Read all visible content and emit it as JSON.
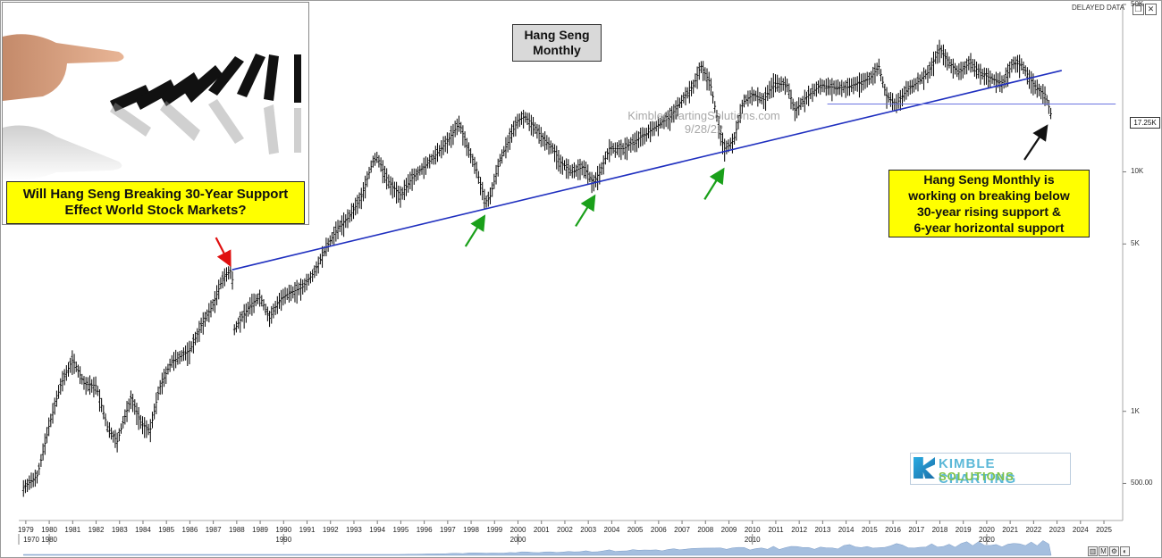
{
  "window": {
    "delayed_label": "DELAYED DATA",
    "controls": [
      "restore-icon",
      "close-icon"
    ]
  },
  "photo_caption": {
    "line1": "Will Hang Seng Breaking 30-Year Support",
    "line2": "Effect World Stock Markets?"
  },
  "title_box": {
    "line1": "Hang Seng",
    "line2": "Monthly"
  },
  "watermark": {
    "line1": "KimbleChartingSolutions.com",
    "line2": "9/28/22"
  },
  "annotation": {
    "line1": "Hang Seng Monthly is",
    "line2": "working on breaking below",
    "line3": "30-year rising support &",
    "line4": "6-year horizontal support"
  },
  "logo": {
    "line1": "KIMBLE CHARTING",
    "line2": "SOLUTIONS"
  },
  "last_price_label": "17.25K",
  "bottom_toolbar": [
    "chart-icon",
    "M",
    "settings-icon",
    "palette-icon"
  ],
  "colors": {
    "trendline": "#1f2fbf",
    "horizontal_support": "#6b74e0",
    "note_fill": "#ffff00",
    "title_fill": "#d9d9d9",
    "arrow_red": "#e01010",
    "arrow_green": "#1aa01a",
    "arrow_black": "#111111"
  },
  "chart_data": {
    "type": "line",
    "style": "monthly OHLC bars",
    "title": "Hang Seng",
    "subtitle": "Monthly",
    "y_scale": "log",
    "y_axis_position": "right",
    "y_tick_labels": [
      "50K",
      "10K",
      "5K",
      "1K",
      "500.00"
    ],
    "y_ticks": [
      50000,
      10000,
      5000,
      1000,
      500
    ],
    "x_tick_labels": [
      "1979",
      "1980",
      "1981",
      "1982",
      "1983",
      "1984",
      "1985",
      "1986",
      "1987",
      "1988",
      "1989",
      "1990",
      "1991",
      "1992",
      "1993",
      "1994",
      "1995",
      "1996",
      "1997",
      "1998",
      "1999",
      "2000",
      "2001",
      "2002",
      "2003",
      "2004",
      "2005",
      "2006",
      "2007",
      "2008",
      "2009",
      "2010",
      "2011",
      "2012",
      "2013",
      "2014",
      "2015",
      "2016",
      "2017",
      "2018",
      "2019",
      "2020",
      "2021",
      "2022",
      "2023",
      "2024",
      "2025"
    ],
    "decade_labels": [
      "1970",
      "1980",
      "1990",
      "2000",
      "2010",
      "2020"
    ],
    "decade_years": [
      1970,
      1980,
      1990,
      2000,
      2010,
      2020
    ],
    "xlim": [
      1978.7,
      2025.8
    ],
    "ylim": [
      350,
      50000
    ],
    "grid": false,
    "series": [
      {
        "x": [
          1978.9,
          1979.5,
          1980.0,
          1980.5,
          1981.0,
          1981.5,
          1982.0,
          1982.5,
          1982.9,
          1983.5,
          1983.9,
          1984.3,
          1984.7,
          1985.2,
          1985.6,
          1986.0,
          1986.5,
          1987.0,
          1987.4,
          1987.8,
          1987.9,
          1988.2,
          1988.6,
          1989.0,
          1989.4,
          1989.8,
          1990.2,
          1990.8,
          1991.3,
          1991.8,
          1992.3,
          1992.8,
          1993.3,
          1993.8,
          1994.0,
          1994.5,
          1995.0,
          1995.5,
          1996.0,
          1996.5,
          1997.0,
          1997.5,
          1997.8,
          1998.2,
          1998.6,
          1998.8,
          1999.2,
          1999.6,
          2000.0,
          2000.3,
          2000.7,
          2001.0,
          2001.5,
          2001.8,
          2002.3,
          2002.8,
          2003.2,
          2003.5,
          2003.9,
          2004.5,
          2005.0,
          2005.5,
          2006.0,
          2006.5,
          2007.0,
          2007.5,
          2007.8,
          2008.2,
          2008.6,
          2008.8,
          2009.2,
          2009.6,
          2010.0,
          2010.5,
          2010.9,
          2011.5,
          2011.8,
          2012.3,
          2012.9,
          2013.5,
          2014.0,
          2014.5,
          2015.0,
          2015.4,
          2015.7,
          2016.1,
          2016.6,
          2017.0,
          2017.5,
          2018.0,
          2018.4,
          2018.8,
          2019.3,
          2019.7,
          2020.2,
          2020.7,
          2021.1,
          2021.5,
          2021.9,
          2022.2,
          2022.5,
          2022.75
        ],
        "y": [
          480,
          540,
          880,
          1300,
          1650,
          1300,
          1280,
          850,
          750,
          1150,
          900,
          830,
          1250,
          1600,
          1700,
          1800,
          2300,
          2800,
          3600,
          3900,
          2200,
          2450,
          2800,
          3000,
          2450,
          2900,
          3100,
          3300,
          3800,
          4800,
          5800,
          6500,
          7800,
          11000,
          11500,
          9000,
          8000,
          9500,
          10500,
          11800,
          13500,
          16000,
          13000,
          10500,
          7500,
          7800,
          11000,
          13500,
          16500,
          17000,
          15500,
          14000,
          12500,
          11000,
          10000,
          10500,
          9000,
          10000,
          12500,
          12500,
          13500,
          14500,
          15800,
          17000,
          20000,
          23000,
          27800,
          23500,
          15000,
          12500,
          13500,
          19500,
          21000,
          20000,
          23500,
          23000,
          18000,
          20500,
          23000,
          22500,
          22500,
          23500,
          24500,
          27500,
          21000,
          19000,
          22000,
          23500,
          26000,
          32800,
          28500,
          26000,
          28700,
          26000,
          24500,
          23500,
          28500,
          28000,
          24000,
          22000,
          21000,
          17250
        ]
      }
    ],
    "rising_trendline": {
      "from": [
        1987.8,
        3900
      ],
      "to": [
        2023.2,
        26500
      ],
      "label": "30-year rising support"
    },
    "horizontal_support": {
      "from": 2013.2,
      "to": 2025.5,
      "value": 19200,
      "label": "6-year horizontal support"
    },
    "arrows": [
      {
        "color": "red",
        "at": [
          1987.8,
          3900
        ]
      },
      {
        "color": "green",
        "at": [
          1998.6,
          7000
        ]
      },
      {
        "color": "green",
        "at": [
          2003.3,
          8500
        ]
      },
      {
        "color": "green",
        "at": [
          2008.8,
          11000
        ]
      },
      {
        "color": "black",
        "at": [
          2022.75,
          17250
        ]
      }
    ]
  }
}
